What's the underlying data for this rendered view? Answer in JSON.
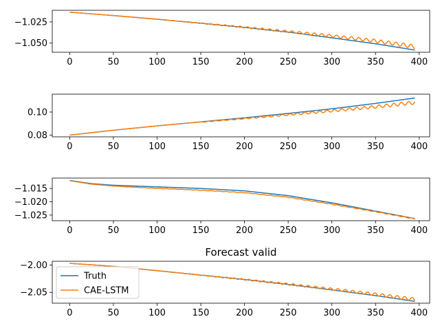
{
  "chart_data": [
    {
      "type": "line",
      "title": "",
      "xlabel": "",
      "ylabel": "",
      "xlim": [
        -20,
        412
      ],
      "ylim": [
        -1.0608,
        -1.0113
      ],
      "xticks": [
        0,
        50,
        100,
        150,
        200,
        250,
        300,
        350,
        400
      ],
      "yticks": [
        -1.025,
        -1.05
      ],
      "ytick_labels": [
        "−1.025",
        "−1.050"
      ],
      "series": [
        {
          "name": "Truth",
          "color": "#1f77b4",
          "x": [
            0,
            50,
            100,
            150,
            200,
            250,
            300,
            350,
            395
          ],
          "values": [
            -1.0135,
            -1.0175,
            -1.0219,
            -1.0265,
            -1.0315,
            -1.037,
            -1.0438,
            -1.0508,
            -1.0582
          ]
        },
        {
          "name": "CAE-LSTM",
          "color": "#ff7f0e",
          "x": [
            0,
            50,
            100,
            150,
            200,
            250,
            300,
            350,
            395
          ],
          "values": [
            -1.0135,
            -1.0174,
            -1.0217,
            -1.0261,
            -1.0305,
            -1.0352,
            -1.04,
            -1.0455,
            -1.052
          ],
          "oscillation": {
            "start_x": 110,
            "amp_start": 0.0003,
            "amp_end": 0.0045,
            "period": 8.5
          }
        }
      ],
      "grid": false
    },
    {
      "type": "line",
      "title": "",
      "xlabel": "",
      "ylabel": "",
      "xlim": [
        -20,
        412
      ],
      "ylim": [
        0.0785,
        0.1155
      ],
      "xticks": [
        0,
        50,
        100,
        150,
        200,
        250,
        300,
        350,
        400
      ],
      "yticks": [
        0.08,
        0.1
      ],
      "ytick_labels": [
        "0.08",
        "0.10"
      ],
      "series": [
        {
          "name": "Truth",
          "color": "#1f77b4",
          "x": [
            0,
            50,
            100,
            150,
            200,
            250,
            300,
            350,
            395
          ],
          "values": [
            0.08,
            0.0842,
            0.088,
            0.0915,
            0.095,
            0.0988,
            0.1028,
            0.1075,
            0.1122
          ]
        },
        {
          "name": "CAE-LSTM",
          "color": "#ff7f0e",
          "x": [
            0,
            50,
            100,
            150,
            200,
            250,
            300,
            350,
            395
          ],
          "values": [
            0.08,
            0.0842,
            0.088,
            0.0914,
            0.0948,
            0.0984,
            0.102,
            0.1058,
            0.1098
          ],
          "oscillation": {
            "start_x": 150,
            "amp_start": 0.0003,
            "amp_end": 0.003,
            "period": 8.5
          }
        }
      ],
      "grid": false
    },
    {
      "type": "line",
      "title": "",
      "xlabel": "",
      "ylabel": "",
      "xlim": [
        -20,
        412
      ],
      "ylim": [
        -1.0271,
        -1.0111
      ],
      "xticks": [
        0,
        50,
        100,
        150,
        200,
        250,
        300,
        350,
        400
      ],
      "yticks": [
        -1.015,
        -1.02,
        -1.025
      ],
      "ytick_labels": [
        "−1.015",
        "−1.020",
        "−1.025"
      ],
      "series": [
        {
          "name": "Truth",
          "color": "#1f77b4",
          "x": [
            0,
            25,
            50,
            100,
            150,
            200,
            250,
            300,
            350,
            395
          ],
          "values": [
            -1.012,
            -1.0132,
            -1.0138,
            -1.0144,
            -1.015,
            -1.0159,
            -1.0177,
            -1.0204,
            -1.0235,
            -1.0263
          ]
        },
        {
          "name": "CAE-LSTM",
          "color": "#ff7f0e",
          "x": [
            0,
            25,
            50,
            100,
            150,
            200,
            250,
            300,
            350,
            395
          ],
          "values": [
            -1.0121,
            -1.0134,
            -1.0141,
            -1.0149,
            -1.0156,
            -1.0165,
            -1.0182,
            -1.0208,
            -1.0236,
            -1.0263
          ],
          "oscillation": {
            "start_x": 60,
            "amp_start": 8e-05,
            "amp_end": 0.00025,
            "period": 8.5
          }
        }
      ],
      "grid": false
    },
    {
      "type": "line",
      "title": "Forecast valid",
      "xlabel": "",
      "ylabel": "",
      "xlim": [
        -20,
        412
      ],
      "ylim": [
        -2.0698,
        -1.9932
      ],
      "xticks": [
        0,
        50,
        100,
        150,
        200,
        250,
        300,
        350,
        400
      ],
      "yticks": [
        -2.0,
        -2.05
      ],
      "ytick_labels": [
        "−2.00",
        "−2.05"
      ],
      "legend": {
        "position": "upper-left",
        "entries": [
          "Truth",
          "CAE-LSTM"
        ]
      },
      "series": [
        {
          "name": "Truth",
          "color": "#1f77b4",
          "x": [
            0,
            50,
            100,
            150,
            200,
            250,
            300,
            350,
            395
          ],
          "values": [
            -1.997,
            -2.0025,
            -2.0105,
            -2.0185,
            -2.0265,
            -2.0355,
            -2.0455,
            -2.056,
            -2.0665
          ]
        },
        {
          "name": "CAE-LSTM",
          "color": "#ff7f0e",
          "x": [
            0,
            50,
            100,
            150,
            200,
            250,
            300,
            350,
            395
          ],
          "values": [
            -1.997,
            -2.0024,
            -2.0103,
            -2.018,
            -2.0255,
            -2.0335,
            -2.042,
            -2.051,
            -2.06
          ],
          "oscillation": {
            "start_x": 120,
            "amp_start": 0.0005,
            "amp_end": 0.006,
            "period": 8.5
          }
        }
      ],
      "grid": false
    }
  ]
}
